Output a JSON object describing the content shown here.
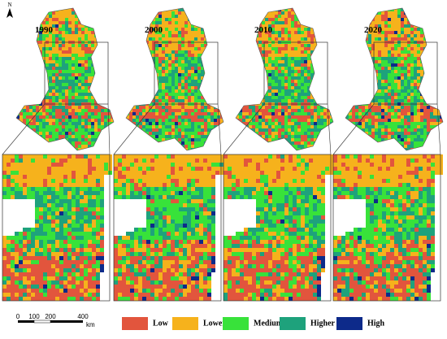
{
  "north_label": "N",
  "panels": [
    {
      "year": "1990"
    },
    {
      "year": "2000"
    },
    {
      "year": "2010"
    },
    {
      "year": "2020"
    }
  ],
  "legend": {
    "items": [
      {
        "label": "Low",
        "color": "#e2553d"
      },
      {
        "label": "Lower",
        "color": "#f6b21c"
      },
      {
        "label": "Medium",
        "color": "#38e23a"
      },
      {
        "label": "Higher",
        "color": "#1ea27c"
      },
      {
        "label": "High",
        "color": "#0d2a8a"
      }
    ]
  },
  "scale_bar": {
    "ticks": [
      "0",
      "100",
      "200",
      "400"
    ],
    "unit": "km"
  }
}
